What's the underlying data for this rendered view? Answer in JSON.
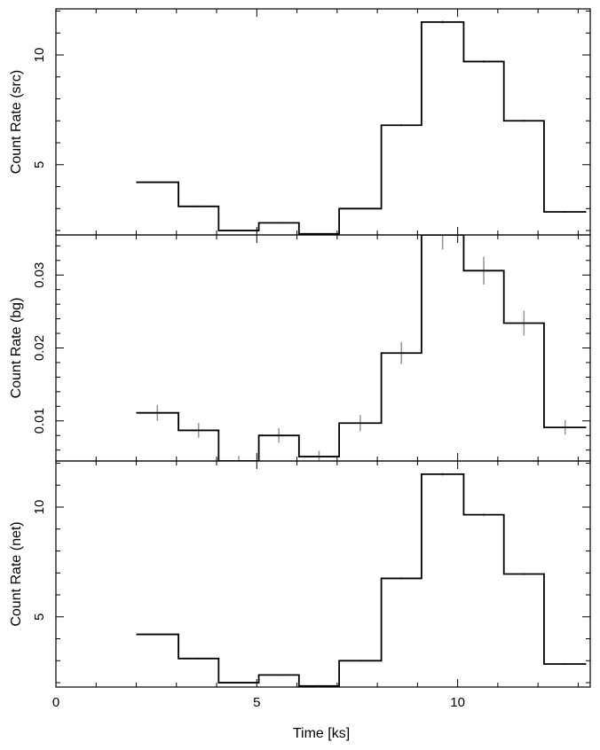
{
  "chart_data": {
    "type": "line",
    "shared_x": {
      "label": "Time [ks]",
      "range": [
        0,
        13.3
      ],
      "ticks": [
        0,
        5,
        10
      ],
      "tick_labels": [
        "0",
        "5",
        "10"
      ],
      "bin_edges": [
        2.0,
        3.05,
        4.05,
        5.05,
        6.05,
        7.05,
        8.1,
        9.1,
        10.15,
        11.15,
        12.15,
        13.2
      ]
    },
    "panels": [
      {
        "ylabel": "Count Rate (src)",
        "ylim": [
          1.8,
          12.1
        ],
        "yticks": [
          5,
          10
        ],
        "ytick_labels": [
          "5",
          "10"
        ],
        "values": [
          4.2,
          3.1,
          2.0,
          2.35,
          1.85,
          3.0,
          6.8,
          11.5,
          9.7,
          7.0,
          2.85
        ],
        "errors": [
          0.04,
          0.04,
          0.04,
          0.04,
          0.04,
          0.04,
          0.05,
          0.06,
          0.06,
          0.05,
          0.04
        ]
      },
      {
        "ylabel": "Count Rate (bg)",
        "ylim": [
          0.0045,
          0.0355
        ],
        "yticks": [
          0.01,
          0.02,
          0.03
        ],
        "ytick_labels": [
          "0.01",
          "0.02",
          "0.03"
        ],
        "values": [
          0.0111,
          0.0087,
          0.0045,
          0.008,
          0.0051,
          0.0097,
          0.0193,
          0.0355,
          0.0306,
          0.0234,
          0.0091
        ],
        "errors": [
          0.0011,
          0.001,
          0.0007,
          0.001,
          0.0008,
          0.0011,
          0.0015,
          0.002,
          0.0019,
          0.0017,
          0.001
        ]
      },
      {
        "ylabel": "Count Rate (net)",
        "ylim": [
          1.8,
          12.1
        ],
        "yticks": [
          5,
          10
        ],
        "ytick_labels": [
          "5",
          "10"
        ],
        "values": [
          4.2,
          3.1,
          2.0,
          2.35,
          1.85,
          3.0,
          6.75,
          11.5,
          9.65,
          6.95,
          2.85
        ],
        "errors": [
          0.04,
          0.04,
          0.04,
          0.04,
          0.04,
          0.04,
          0.05,
          0.06,
          0.06,
          0.05,
          0.04
        ]
      }
    ],
    "colors": {
      "step": "#000000",
      "errorbar": "#999999",
      "axes": "#000000"
    }
  }
}
